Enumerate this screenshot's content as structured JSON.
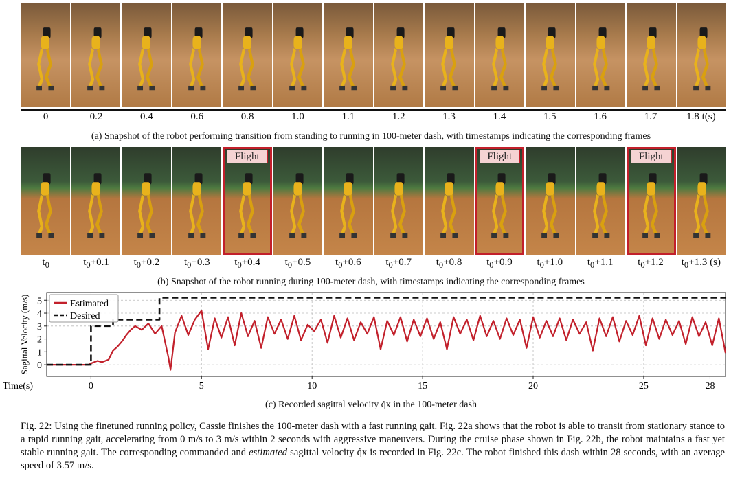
{
  "strip_a": {
    "ticks": [
      "0",
      "0.2",
      "0.4",
      "0.6",
      "0.8",
      "1.0",
      "1.1",
      "1.2",
      "1.3",
      "1.4",
      "1.5",
      "1.6",
      "1.7",
      "1.8 t(s)"
    ],
    "caption": "(a) Snapshot of the robot performing transition from standing to running in 100-meter dash, with timestamps indicating the corresponding frames"
  },
  "strip_b": {
    "flight_label": "Flight",
    "flight_frames": [
      4,
      9,
      12
    ],
    "ticks": [
      "t0",
      "t0+0.1",
      "t0+0.2",
      "t0+0.3",
      "t0+0.4",
      "t0+0.5",
      "t0+0.6",
      "t0+0.7",
      "t0+0.8",
      "t0+0.9",
      "t0+1.0",
      "t0+1.1",
      "t0+1.2",
      "t0+1.3 (s)"
    ],
    "caption": "(b) Snapshot of the robot running during 100-meter dash, with timestamps indicating the corresponding frames"
  },
  "chart_data": {
    "type": "line",
    "ylabel": "Sagittal Velocity (m/s)",
    "xlabel": "Time(s)",
    "xlim": [
      -2,
      28.7
    ],
    "ylim": [
      -0.9,
      5.6
    ],
    "xticks": [
      0,
      5,
      10,
      15,
      20,
      25
    ],
    "xticks_extra": [
      28
    ],
    "yticks": [
      0,
      1,
      2,
      3,
      4,
      5
    ],
    "grid": true,
    "legend_position": "top-left",
    "series": [
      {
        "name": "Estimated",
        "color": "#c2202b",
        "style": "solid",
        "x": [
          -2,
          -0.1,
          0,
          0.3,
          0.5,
          0.8,
          1.0,
          1.2,
          1.4,
          1.6,
          1.8,
          2.0,
          2.3,
          2.6,
          2.9,
          3.2,
          3.5,
          3.6,
          3.8,
          4.1,
          4.4,
          4.7,
          5.0,
          5.3,
          5.6,
          5.9,
          6.2,
          6.5,
          6.8,
          7.1,
          7.4,
          7.7,
          8.0,
          8.3,
          8.6,
          8.9,
          9.2,
          9.5,
          9.8,
          10.1,
          10.4,
          10.7,
          11.0,
          11.3,
          11.6,
          11.9,
          12.2,
          12.5,
          12.8,
          13.1,
          13.4,
          13.7,
          14.0,
          14.3,
          14.6,
          14.9,
          15.2,
          15.5,
          15.8,
          16.1,
          16.4,
          16.7,
          17.0,
          17.3,
          17.6,
          17.9,
          18.2,
          18.5,
          18.8,
          19.1,
          19.4,
          19.7,
          20.0,
          20.3,
          20.6,
          20.9,
          21.2,
          21.5,
          21.8,
          22.1,
          22.4,
          22.7,
          23.0,
          23.3,
          23.6,
          23.9,
          24.2,
          24.5,
          24.8,
          25.1,
          25.4,
          25.7,
          26.0,
          26.3,
          26.6,
          26.9,
          27.2,
          27.5,
          27.8,
          28.1,
          28.4,
          28.7
        ],
        "y": [
          0,
          0,
          0.1,
          0.3,
          0.2,
          0.4,
          1.1,
          1.4,
          1.8,
          2.3,
          2.7,
          3.0,
          2.7,
          3.2,
          2.4,
          3.0,
          0.6,
          -0.4,
          2.5,
          3.8,
          2.3,
          3.5,
          4.2,
          1.2,
          3.6,
          2.1,
          3.7,
          1.5,
          4.0,
          2.2,
          3.4,
          1.3,
          3.7,
          2.4,
          3.5,
          2.0,
          3.8,
          1.9,
          3.1,
          2.6,
          3.5,
          1.7,
          3.8,
          2.1,
          3.6,
          1.9,
          3.3,
          2.4,
          3.7,
          1.2,
          3.4,
          2.3,
          3.7,
          1.8,
          3.5,
          2.2,
          3.6,
          2.0,
          3.3,
          1.2,
          3.7,
          2.4,
          3.5,
          1.9,
          3.8,
          2.2,
          3.4,
          2.0,
          3.6,
          2.3,
          3.5,
          1.3,
          3.7,
          2.1,
          3.4,
          2.2,
          3.6,
          1.9,
          3.5,
          2.4,
          3.3,
          1.1,
          3.6,
          2.2,
          3.7,
          1.8,
          3.4,
          2.3,
          3.8,
          1.5,
          3.6,
          2.0,
          3.5,
          2.3,
          3.4,
          1.6,
          3.7,
          2.2,
          3.3,
          1.5,
          3.6,
          0.9
        ]
      },
      {
        "name": "Desired",
        "color": "#111111",
        "style": "dashed",
        "x": [
          -2,
          0,
          0,
          1.0,
          1.0,
          3.1,
          3.1,
          28.7
        ],
        "y": [
          0,
          0,
          3.0,
          3.0,
          3.5,
          3.5,
          5.2,
          5.2
        ]
      }
    ]
  },
  "caption_c": "(c) Recorded sagittal velocity q̇x in the 100-meter dash",
  "figure_caption": {
    "part1": "Fig. 22: Using the finetuned running policy, Cassie finishes the 100-meter dash with a fast running gait. Fig. 22a shows that the robot is able to transit from stationary stance to a rapid running gait, accelerating from 0 m/s to 3 m/s within 2 seconds with aggressive maneuvers. During the cruise phase shown in Fig. 22b, the robot maintains a fast yet stable running gait. The corresponding commanded and ",
    "emph": "estimated",
    "part2": " sagittal velocity q̇x is recorded in Fig. 22c. The robot finished this dash within 28 seconds, with an average speed of 3.57 m/s."
  }
}
